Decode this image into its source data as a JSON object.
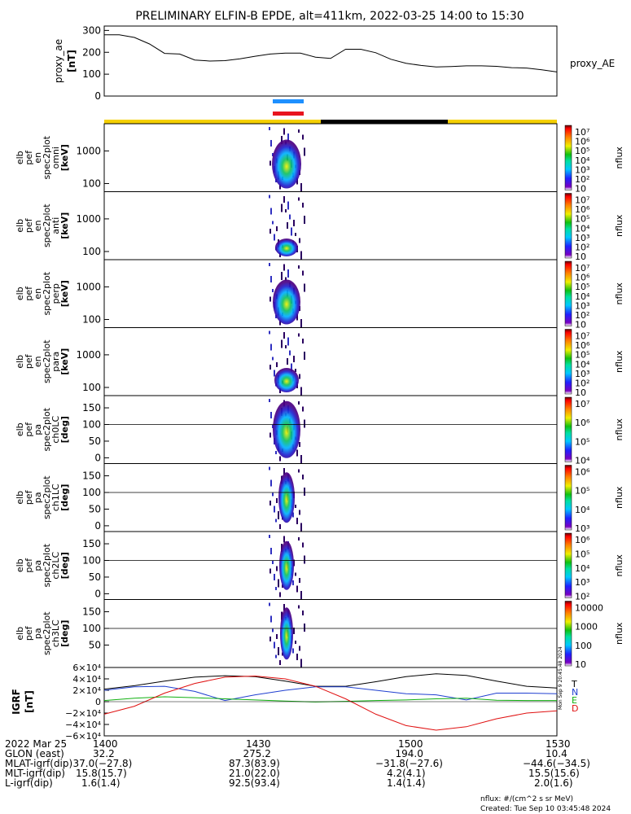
{
  "title": "PRELIMINARY ELFIN-B EPDE, alt=411km, 2022-03-25 14:00 to 15:30",
  "colors": {
    "blue_bar": "#1e90ff",
    "red_bar": "#e8141e",
    "sunlit": "#f5d000",
    "eclipse": "#000000"
  },
  "ae_panel": {
    "ylabel": "proxy_ae\n[nT]",
    "legend": "proxy_AE",
    "yticks": [
      "300",
      "200",
      "100",
      "0"
    ],
    "ylim": [
      0,
      320
    ]
  },
  "spec_panels": [
    {
      "ylabel": [
        "elb",
        "pef",
        "en",
        "spec2plot",
        "omni",
        "[keV]"
      ],
      "yticks": [
        "1000",
        "100"
      ],
      "cbar_ticks": [
        "10⁷",
        "10⁶",
        "10⁵",
        "10⁴",
        "10³",
        "10²",
        "10"
      ],
      "cbar_label": "nflux"
    },
    {
      "ylabel": [
        "elb",
        "pef",
        "en",
        "spec2plot",
        "anti",
        "[keV]"
      ],
      "yticks": [
        "1000",
        "100"
      ],
      "cbar_ticks": [
        "10⁷",
        "10⁶",
        "10⁵",
        "10⁴",
        "10³",
        "10²",
        "10"
      ],
      "cbar_label": "nflux"
    },
    {
      "ylabel": [
        "elb",
        "pef",
        "en",
        "spec2plot",
        "perp",
        "[keV]"
      ],
      "yticks": [
        "1000",
        "100"
      ],
      "cbar_ticks": [
        "10⁷",
        "10⁶",
        "10⁵",
        "10⁴",
        "10³",
        "10²",
        "10"
      ],
      "cbar_label": "nflux"
    },
    {
      "ylabel": [
        "elb",
        "pef",
        "en",
        "spec2plot",
        "para",
        "[keV]"
      ],
      "yticks": [
        "1000",
        "100"
      ],
      "cbar_ticks": [
        "10⁷",
        "10⁶",
        "10⁵",
        "10⁴",
        "10³",
        "10²",
        "10"
      ],
      "cbar_label": "nflux"
    }
  ],
  "pa_panels": [
    {
      "ylabel": [
        "elb",
        "pef",
        "pa",
        "spec2plot",
        "ch0LC",
        "[deg]"
      ],
      "yticks": [
        "150",
        "100",
        "50",
        "0"
      ],
      "cbar_ticks": [
        "10⁷",
        "10⁶",
        "10⁵",
        "10⁴"
      ],
      "cbar_label": "nflux"
    },
    {
      "ylabel": [
        "elb",
        "pef",
        "pa",
        "spec2plot",
        "ch1LC",
        "[deg]"
      ],
      "yticks": [
        "150",
        "100",
        "50",
        "0"
      ],
      "cbar_ticks": [
        "10⁶",
        "10⁵",
        "10⁴",
        "10³"
      ],
      "cbar_label": "nflux"
    },
    {
      "ylabel": [
        "elb",
        "pef",
        "pa",
        "spec2plot",
        "ch2LC",
        "[deg]"
      ],
      "yticks": [
        "150",
        "100",
        "50",
        "0"
      ],
      "cbar_ticks": [
        "10⁶",
        "10⁵",
        "10⁴",
        "10³",
        "10²"
      ],
      "cbar_label": "nflux"
    },
    {
      "ylabel": [
        "elb",
        "pef",
        "pa",
        "spec2plot",
        "ch3LC",
        "[deg]"
      ],
      "yticks": [
        "150",
        "100",
        "50"
      ],
      "cbar_ticks": [
        "10000",
        "1000",
        "100",
        "10"
      ],
      "cbar_label": "nflux"
    }
  ],
  "igrf_panel": {
    "ylabel": "IGRF\n[nT]",
    "yticks": [
      "6×10⁴",
      "4×10⁴",
      "2×10⁴",
      "0",
      "−2×10⁴",
      "−4×10⁴",
      "−6×10⁴"
    ],
    "legend": [
      "T",
      "N",
      "E",
      "D"
    ],
    "legend_colors": [
      "#000000",
      "#1f3fd0",
      "#10b010",
      "#e01010"
    ],
    "stamp": "Mon Sep 9 20:45:48 2024"
  },
  "chart_data": {
    "type": "line",
    "title": "PRELIMINARY ELFIN-B EPDE, alt=411km, 2022-03-25 14:00 to 15:30",
    "x_range_minutes": [
      0,
      90
    ],
    "proxy_ae": {
      "x": [
        0,
        3,
        6,
        9,
        12,
        15,
        18,
        21,
        24,
        27,
        30,
        33,
        36,
        39,
        42,
        45,
        48,
        51,
        54,
        57,
        60,
        63,
        66,
        69,
        72,
        75,
        78,
        81,
        84,
        87,
        90
      ],
      "y": [
        280,
        280,
        268,
        238,
        195,
        192,
        165,
        160,
        162,
        170,
        182,
        192,
        196,
        196,
        178,
        172,
        214,
        214,
        198,
        168,
        150,
        140,
        133,
        135,
        138,
        138,
        136,
        130,
        128,
        120,
        110
      ]
    },
    "igrf": {
      "x": [
        0,
        6,
        12,
        18,
        24,
        30,
        36,
        42,
        48,
        54,
        60,
        66,
        72,
        78,
        84,
        90
      ],
      "T": [
        22000,
        28000,
        36000,
        43000,
        45500,
        44000,
        36000,
        27000,
        27000,
        35000,
        44000,
        49000,
        46000,
        36000,
        27000,
        24000
      ],
      "N": [
        20000,
        26000,
        27000,
        18000,
        2000,
        12000,
        20000,
        26000,
        26000,
        20000,
        14000,
        12000,
        3000,
        15000,
        15000,
        14000
      ],
      "E": [
        2000,
        6000,
        8500,
        7000,
        5000,
        3000,
        1000,
        -500,
        500,
        2000,
        3000,
        5000,
        6000,
        2500,
        2000,
        2000
      ],
      "D": [
        -22000,
        -8000,
        15000,
        32000,
        43000,
        45000,
        40000,
        27000,
        5000,
        -22000,
        -42000,
        -50000,
        -44000,
        -30000,
        -20000,
        -16000
      ]
    },
    "xticks": [
      "1400",
      "1430",
      "1500",
      "1530"
    ]
  },
  "footer": {
    "rows": [
      {
        "label": "2022 Mar 25",
        "vals": [
          "1400",
          "1430",
          "1500",
          "1530"
        ]
      },
      {
        "label": "GLON (east)",
        "vals": [
          "32.2",
          "275.2",
          "194.0",
          "10.4"
        ]
      },
      {
        "label": "MLAT-igrf(dip)",
        "vals": [
          "37.0(−27.8)",
          "87.3(83.9)",
          "−31.8(−27.6)",
          "−44.6(−34.5)"
        ]
      },
      {
        "label": "MLT-igrf(dip)",
        "vals": [
          "15.8(15.7)",
          "21.0(22.0)",
          "4.2(4.1)",
          "15.5(15.6)"
        ]
      },
      {
        "label": "L-igrf(dip)",
        "vals": [
          "1.6(1.4)",
          "92.5(93.4)",
          "1.4(1.4)",
          "2.0(1.6)"
        ]
      }
    ],
    "nflux_units": "nflux: #/(cm^2 s sr MeV)",
    "created": "Created: Tue Sep 10 03:45:48 2024"
  }
}
